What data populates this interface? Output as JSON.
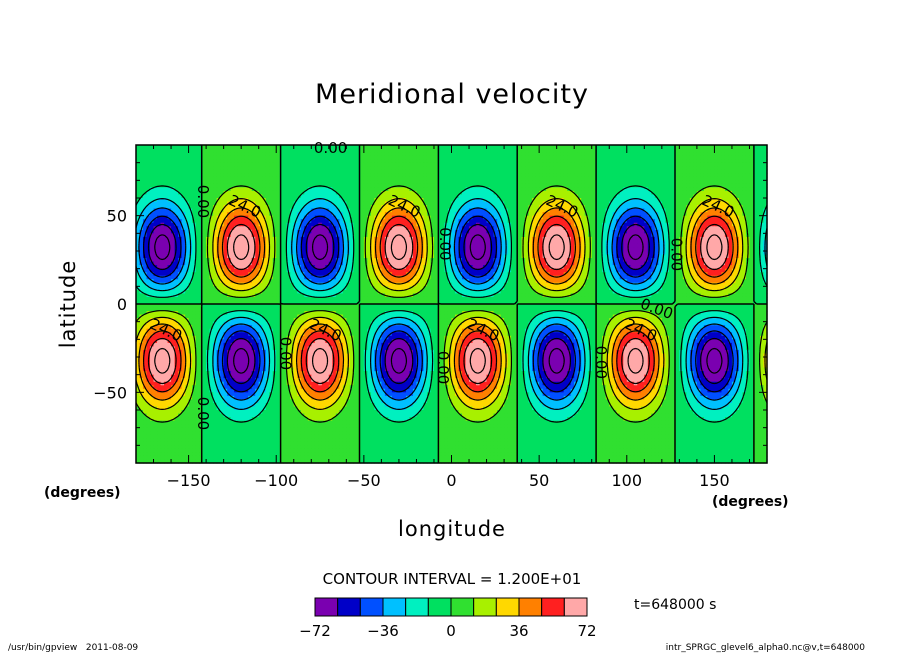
{
  "chart_data": {
    "type": "heatmap",
    "title": "Meridional velocity",
    "xlabel": "longitude",
    "ylabel": "latitude",
    "x_unit": "(degrees)",
    "y_unit": "(degrees)",
    "xlim": [
      -180,
      180
    ],
    "ylim": [
      -90,
      90
    ],
    "x_ticks": [
      -150,
      -100,
      -50,
      0,
      50,
      100,
      150
    ],
    "y_ticks": [
      -50,
      0,
      50
    ],
    "contour_interval_text": "CONTOUR INTERVAL = 1.200E+01",
    "time_text": "t=648000 s",
    "field": {
      "zonal_wavenumber": 4,
      "amplitude": 78,
      "centers_lat": [
        32,
        -32
      ],
      "northern_positive_lon": [
        -120,
        -30,
        60,
        150
      ],
      "northern_negative_lon": [
        -165,
        -75,
        15,
        105
      ]
    },
    "contour_labels": [
      {
        "text": "0.00",
        "lon": -69,
        "lat": 88,
        "rot": 0
      },
      {
        "text": "0.00",
        "lon": -142,
        "lat": 58,
        "rot": 90
      },
      {
        "text": "24.0",
        "lon": -118,
        "lat": 55,
        "rot": 25
      },
      {
        "text": "24.0",
        "lon": -27,
        "lat": 55,
        "rot": 25
      },
      {
        "text": "0.00",
        "lon": -4,
        "lat": 34,
        "rot": 90
      },
      {
        "text": "24.0",
        "lon": 63,
        "lat": 55,
        "rot": 25
      },
      {
        "text": "0.00",
        "lon": 128,
        "lat": 28,
        "rot": 90
      },
      {
        "text": "24.0",
        "lon": 152,
        "lat": 55,
        "rot": 25
      },
      {
        "text": "0.00",
        "lon": 117,
        "lat": -3,
        "rot": 20
      },
      {
        "text": "24.0",
        "lon": -163,
        "lat": -15,
        "rot": 25
      },
      {
        "text": "24.0",
        "lon": -72,
        "lat": -15,
        "rot": 25
      },
      {
        "text": "24.0",
        "lon": 18,
        "lat": -15,
        "rot": 25
      },
      {
        "text": "24.0",
        "lon": 108,
        "lat": -15,
        "rot": 25
      },
      {
        "text": "0.00",
        "lon": -95,
        "lat": -28,
        "rot": 90
      },
      {
        "text": "0.00",
        "lon": -5,
        "lat": -36,
        "rot": 90
      },
      {
        "text": "0.00",
        "lon": 85,
        "lat": -33,
        "rot": 90
      },
      {
        "text": "0.00",
        "lon": -142,
        "lat": -62,
        "rot": 90
      }
    ],
    "colorbar": {
      "levels": [
        -72,
        -60,
        -48,
        -36,
        -24,
        -12,
        0,
        12,
        24,
        36,
        48,
        60,
        72
      ],
      "colors": [
        "#7a00b0",
        "#0000c8",
        "#0050ff",
        "#00c0ff",
        "#00f0c0",
        "#00e060",
        "#30e030",
        "#a8f000",
        "#ffd800",
        "#ff8000",
        "#ff2020",
        "#ffa8a8"
      ],
      "tick_labels": [
        "−72",
        "−36",
        "0",
        "36",
        "72"
      ],
      "tick_values": [
        -72,
        -36,
        0,
        36,
        72
      ]
    }
  },
  "footer": {
    "left": "/usr/bin/gpview   2011-08-09",
    "right": "intr_SPRGC_glevel6_alpha0.nc@v,t=648000"
  },
  "colors": {
    "frame": "#000000",
    "background": "#ffffff"
  }
}
